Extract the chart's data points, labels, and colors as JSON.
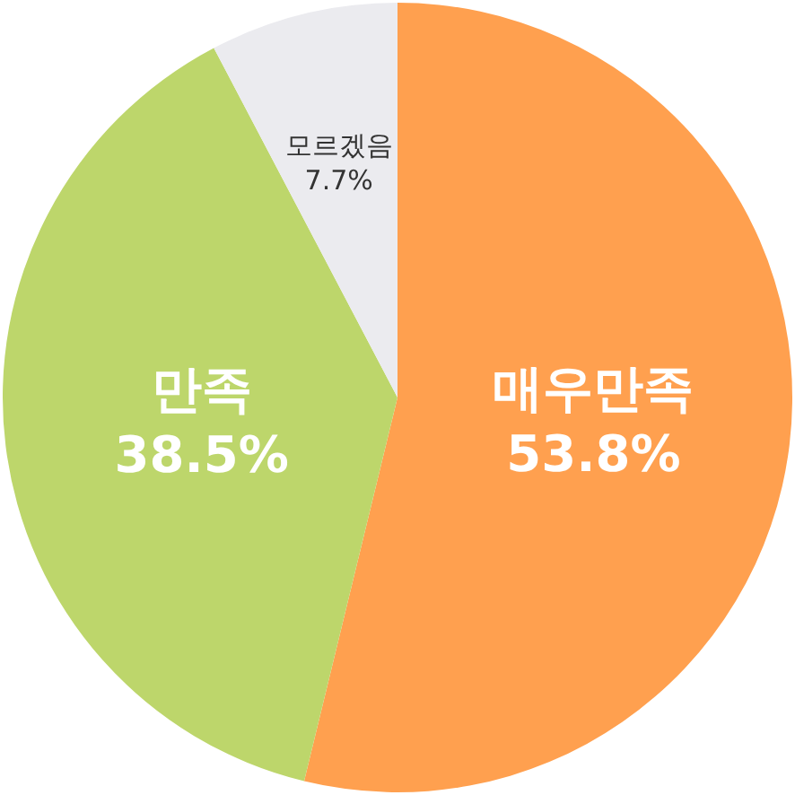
{
  "chart_data": {
    "type": "pie",
    "categories": [
      "매우만족",
      "만족",
      "모르겠음"
    ],
    "values": [
      53.8,
      38.5,
      7.7
    ],
    "value_labels": [
      "53.8%",
      "38.5%",
      "7.7%"
    ],
    "colors": [
      "#ffa04f",
      "#bdd66b",
      "#ebebef"
    ]
  }
}
